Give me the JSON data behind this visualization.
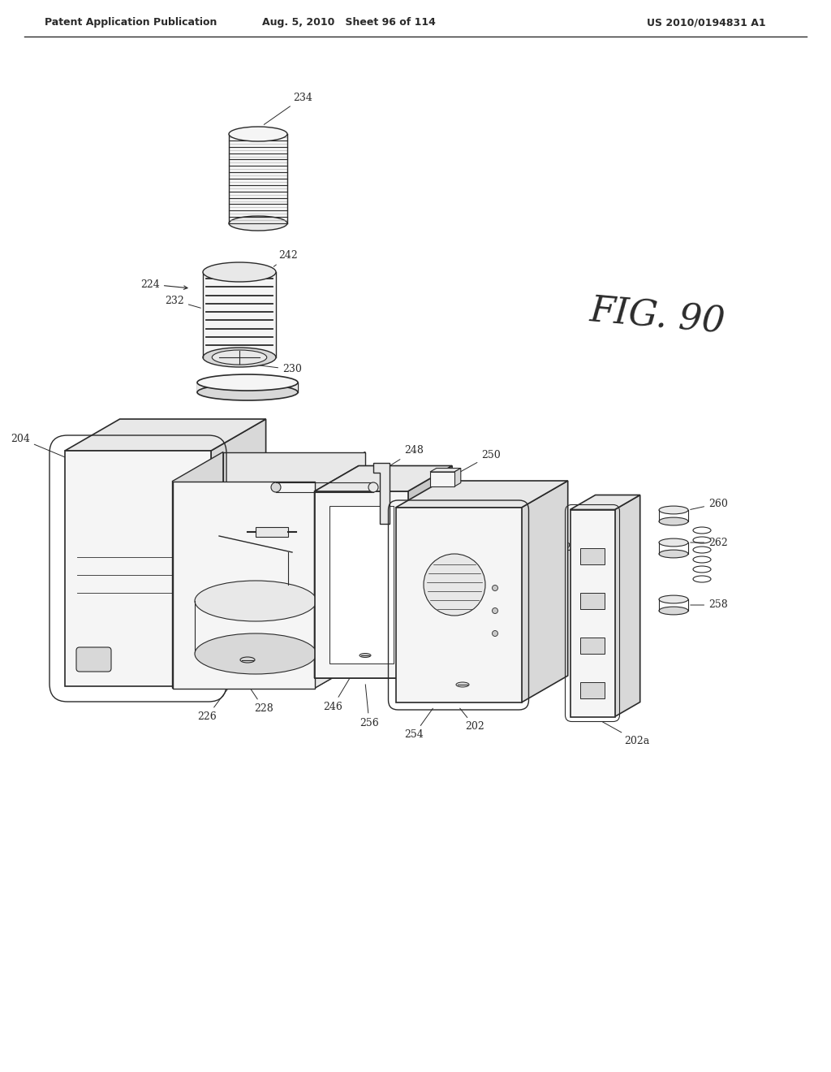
{
  "bg": "#ffffff",
  "lc": "#2a2a2a",
  "header_left": "Patent Application Publication",
  "header_mid": "Aug. 5, 2010   Sheet 96 of 114",
  "header_right": "US 2010/0194831 A1",
  "fig_label": "FIG. 90",
  "fc_light": "#f5f5f5",
  "fc_mid": "#e8e8e8",
  "fc_dark": "#d8d8d8",
  "fc_darker": "#c8c8c8"
}
